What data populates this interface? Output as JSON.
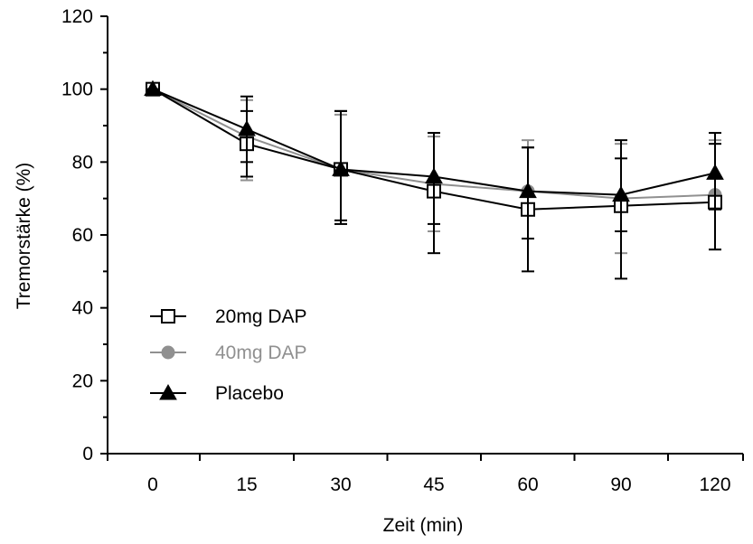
{
  "chart_data": {
    "type": "line",
    "xlabel": "Zeit (min)",
    "ylabel": "Tremorstärke (%)",
    "categories": [
      "0",
      "15",
      "30",
      "45",
      "60",
      "90",
      "120"
    ],
    "ylim": [
      0,
      120
    ],
    "yticks": [
      "0",
      "20",
      "40",
      "60",
      "80",
      "100",
      "120"
    ],
    "grid": false,
    "legend": "bottom-left",
    "series": [
      {
        "name": "20mg DAP",
        "color": "#000000",
        "marker": "square-open",
        "values": [
          100,
          85,
          78,
          72,
          67,
          68,
          69
        ],
        "err_low": [
          100,
          76,
          64,
          55,
          50,
          48,
          56
        ],
        "err_high": [
          100,
          94,
          94,
          88,
          84,
          86,
          85
        ]
      },
      {
        "name": "40mg DAP",
        "color": "#909090",
        "marker": "circle-filled",
        "values": [
          100,
          87,
          78,
          74,
          72,
          70,
          71
        ],
        "err_low": [
          100,
          75,
          63,
          61,
          59,
          55,
          56
        ],
        "err_high": [
          100,
          97,
          93,
          87,
          86,
          85,
          86
        ]
      },
      {
        "name": "Placebo",
        "color": "#000000",
        "marker": "triangle-filled",
        "values": [
          100,
          89,
          78,
          76,
          72,
          71,
          77
        ],
        "err_low": [
          100,
          80,
          63,
          63,
          59,
          61,
          67
        ],
        "err_high": [
          100,
          98,
          94,
          88,
          84,
          81,
          88
        ]
      }
    ]
  }
}
